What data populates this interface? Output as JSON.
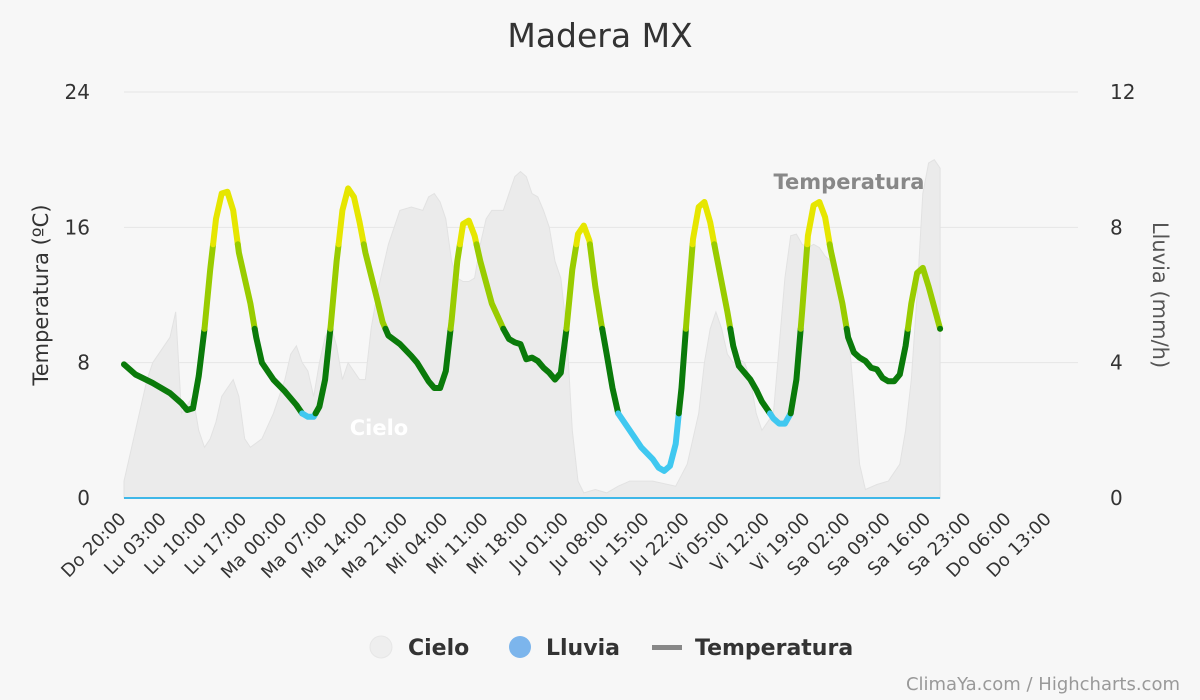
{
  "chart_data": {
    "type": "line",
    "title": "Madera MX",
    "ylabel": "Temperatura (ºC)",
    "y2label": "Lluvia (mm/h)",
    "ylim": [
      0,
      24
    ],
    "y2lim": [
      0,
      12
    ],
    "yticks": [
      0,
      8,
      16,
      24
    ],
    "y2ticks": [
      0,
      4,
      8,
      12
    ],
    "x_range": [
      0,
      166
    ],
    "x_unit": "hours since Do 20:00",
    "xtick_labels": [
      "Do 20:00",
      "Lu 03:00",
      "Lu 10:00",
      "Lu 17:00",
      "Ma 00:00",
      "Ma 07:00",
      "Ma 14:00",
      "Ma 21:00",
      "Mi 04:00",
      "Mi 11:00",
      "Mi 18:00",
      "Ju 01:00",
      "Ju 08:00",
      "Ju 15:00",
      "Ju 22:00",
      "Vi 05:00",
      "Vi 12:00",
      "Vi 19:00",
      "Sa 02:00",
      "Sa 09:00",
      "Sa 16:00",
      "Sa 23:00",
      "Do 06:00",
      "Do 13:00"
    ],
    "series": [
      {
        "name": "Temperatura",
        "points": [
          [
            0,
            7.9
          ],
          [
            2,
            7.3
          ],
          [
            5,
            6.8
          ],
          [
            8,
            6.2
          ],
          [
            10,
            5.6
          ],
          [
            11,
            5.2
          ],
          [
            12,
            5.3
          ],
          [
            13,
            7.2
          ],
          [
            14,
            10.0
          ],
          [
            15,
            13.5
          ],
          [
            16,
            16.5
          ],
          [
            17,
            18
          ],
          [
            18,
            18.1
          ],
          [
            19,
            17.0
          ],
          [
            20,
            14.5
          ],
          [
            22,
            11.5
          ],
          [
            23,
            9.5
          ],
          [
            24,
            8.0
          ],
          [
            26,
            7.0
          ],
          [
            28,
            6.3
          ],
          [
            30,
            5.5
          ],
          [
            31,
            5.0
          ],
          [
            32,
            4.8
          ],
          [
            33,
            4.8
          ],
          [
            34,
            5.4
          ],
          [
            35,
            7.0
          ],
          [
            36,
            10.3
          ],
          [
            37,
            14.0
          ],
          [
            38,
            17.0
          ],
          [
            39,
            18.3
          ],
          [
            40,
            17.8
          ],
          [
            41,
            16.3
          ],
          [
            42,
            14.5
          ],
          [
            44,
            11.8
          ],
          [
            45,
            10.4
          ],
          [
            46,
            9.6
          ],
          [
            48,
            9.1
          ],
          [
            50,
            8.4
          ],
          [
            51,
            8.0
          ],
          [
            53,
            6.9
          ],
          [
            54,
            6.5
          ],
          [
            55,
            6.5
          ],
          [
            56,
            7.5
          ],
          [
            57,
            10.5
          ],
          [
            58,
            14.0
          ],
          [
            59,
            16.2
          ],
          [
            60,
            16.4
          ],
          [
            61,
            15.5
          ],
          [
            62,
            14.0
          ],
          [
            64,
            11.5
          ],
          [
            66,
            10.0
          ],
          [
            67,
            9.4
          ],
          [
            68,
            9.2
          ],
          [
            69,
            9.1
          ],
          [
            70,
            8.2
          ],
          [
            71,
            8.3
          ],
          [
            72,
            8.1
          ],
          [
            73,
            7.7
          ],
          [
            74,
            7.4
          ],
          [
            75,
            7.0
          ],
          [
            76,
            7.4
          ],
          [
            77,
            10.0
          ],
          [
            78,
            13.5
          ],
          [
            79,
            15.6
          ],
          [
            80,
            16.1
          ],
          [
            81,
            15.2
          ],
          [
            82,
            12.5
          ],
          [
            83,
            10.4
          ],
          [
            84,
            8.5
          ],
          [
            85,
            6.5
          ],
          [
            86,
            5.0
          ],
          [
            87,
            4.5
          ],
          [
            88,
            4.0
          ],
          [
            90,
            3.0
          ],
          [
            92,
            2.3
          ],
          [
            93,
            1.8
          ],
          [
            94,
            1.6
          ],
          [
            95,
            1.9
          ],
          [
            96,
            3.2
          ],
          [
            97,
            6.5
          ],
          [
            98,
            11.0
          ],
          [
            99,
            15.3
          ],
          [
            100,
            17.2
          ],
          [
            101,
            17.5
          ],
          [
            102,
            16.3
          ],
          [
            103,
            14.5
          ],
          [
            105,
            11.0
          ],
          [
            106,
            9.0
          ],
          [
            107,
            7.8
          ],
          [
            109,
            7.0
          ],
          [
            110,
            6.4
          ],
          [
            111,
            5.7
          ],
          [
            112,
            5.2
          ],
          [
            113,
            4.7
          ],
          [
            114,
            4.4
          ],
          [
            115,
            4.4
          ],
          [
            116,
            5.0
          ],
          [
            117,
            7.0
          ],
          [
            118,
            11.0
          ],
          [
            119,
            15.5
          ],
          [
            120,
            17.3
          ],
          [
            121,
            17.5
          ],
          [
            122,
            16.6
          ],
          [
            123,
            14.6
          ],
          [
            125,
            11.5
          ],
          [
            126,
            9.5
          ],
          [
            127,
            8.6
          ],
          [
            128,
            8.3
          ],
          [
            129,
            8.1
          ],
          [
            130,
            7.7
          ],
          [
            131,
            7.6
          ],
          [
            132,
            7.1
          ],
          [
            133,
            6.9
          ],
          [
            134,
            6.9
          ],
          [
            135,
            7.3
          ],
          [
            136,
            9.0
          ],
          [
            137,
            11.5
          ],
          [
            138,
            13.3
          ],
          [
            139,
            13.6
          ],
          [
            140,
            12.5
          ],
          [
            142,
            10.0
          ]
        ]
      },
      {
        "name": "Cielo",
        "points": [
          [
            0,
            1
          ],
          [
            2,
            4
          ],
          [
            4,
            7
          ],
          [
            5,
            8
          ],
          [
            6,
            8.5
          ],
          [
            8,
            9.5
          ],
          [
            9,
            11
          ],
          [
            10,
            5
          ],
          [
            11,
            5.5
          ],
          [
            12,
            6
          ],
          [
            13,
            4
          ],
          [
            14,
            3
          ],
          [
            15,
            3.5
          ],
          [
            16,
            4.5
          ],
          [
            17,
            6
          ],
          [
            18,
            6.5
          ],
          [
            19,
            7
          ],
          [
            20,
            6
          ],
          [
            21,
            3.5
          ],
          [
            22,
            3
          ],
          [
            24,
            3.5
          ],
          [
            26,
            5
          ],
          [
            28,
            7
          ],
          [
            29,
            8.5
          ],
          [
            30,
            9
          ],
          [
            31,
            8
          ],
          [
            32,
            7.5
          ],
          [
            33,
            6
          ],
          [
            34,
            8
          ],
          [
            35,
            9.5
          ],
          [
            36,
            10.2
          ],
          [
            37,
            9
          ],
          [
            38,
            7
          ],
          [
            39,
            8
          ],
          [
            41,
            7
          ],
          [
            42,
            7
          ],
          [
            43,
            10
          ],
          [
            44,
            12
          ],
          [
            45,
            13.5
          ],
          [
            46,
            15
          ],
          [
            48,
            17
          ],
          [
            50,
            17.2
          ],
          [
            52,
            17
          ],
          [
            53,
            17.8
          ],
          [
            54,
            18
          ],
          [
            55,
            17.5
          ],
          [
            56,
            16.5
          ],
          [
            57,
            14
          ],
          [
            58,
            13
          ],
          [
            59,
            12.8
          ],
          [
            60,
            12.8
          ],
          [
            61,
            13
          ],
          [
            62,
            15
          ],
          [
            63,
            16.5
          ],
          [
            64,
            17
          ],
          [
            66,
            17
          ],
          [
            67,
            18
          ],
          [
            68,
            19
          ],
          [
            69,
            19.3
          ],
          [
            70,
            19
          ],
          [
            71,
            18
          ],
          [
            72,
            17.8
          ],
          [
            73,
            17
          ],
          [
            74,
            16
          ],
          [
            75,
            14
          ],
          [
            76,
            13
          ],
          [
            77,
            10
          ],
          [
            78,
            4
          ],
          [
            79,
            1
          ],
          [
            80,
            0.3
          ],
          [
            82,
            0.5
          ],
          [
            84,
            0.3
          ],
          [
            86,
            0.7
          ],
          [
            88,
            1
          ],
          [
            92,
            1
          ],
          [
            96,
            0.7
          ],
          [
            98,
            2
          ],
          [
            100,
            5
          ],
          [
            101,
            8
          ],
          [
            102,
            10
          ],
          [
            103,
            11
          ],
          [
            104,
            10
          ],
          [
            105,
            8.5
          ],
          [
            106,
            8
          ],
          [
            107,
            8.2
          ],
          [
            108,
            8
          ],
          [
            109,
            7
          ],
          [
            110,
            5
          ],
          [
            111,
            4
          ],
          [
            112,
            4.5
          ],
          [
            113,
            5
          ],
          [
            114,
            9
          ],
          [
            115,
            13
          ],
          [
            116,
            15.5
          ],
          [
            117,
            15.6
          ],
          [
            118,
            15
          ],
          [
            119,
            14.8
          ],
          [
            120,
            15
          ],
          [
            121,
            14.8
          ],
          [
            122,
            14.3
          ],
          [
            123,
            14
          ],
          [
            124,
            13
          ],
          [
            125,
            11.5
          ],
          [
            126,
            10
          ],
          [
            127,
            6
          ],
          [
            128,
            2
          ],
          [
            129,
            0.5
          ],
          [
            131,
            0.8
          ],
          [
            133,
            1
          ],
          [
            135,
            2
          ],
          [
            136,
            4
          ],
          [
            137,
            7
          ],
          [
            138,
            12
          ],
          [
            139,
            18
          ],
          [
            140,
            19.8
          ],
          [
            141,
            20
          ],
          [
            142,
            19.5
          ]
        ]
      },
      {
        "name": "Lluvia",
        "points": [
          [
            0,
            0
          ],
          [
            142,
            0
          ]
        ]
      }
    ],
    "temperature_color_bands": [
      {
        "max": 5,
        "color": "#40c8f0"
      },
      {
        "max": 10,
        "color": "#0a7a0a"
      },
      {
        "max": 15,
        "color": "#99cc00"
      },
      {
        "max": 25,
        "color": "#e6e600"
      }
    ],
    "annotations": [
      "Temperatura",
      "Cielo"
    ],
    "legend": [
      {
        "label": "Cielo",
        "color": "#eeeeee",
        "symbol": "circle"
      },
      {
        "label": "Lluvia",
        "color": "#7cb5ec",
        "symbol": "circle"
      },
      {
        "label": "Temperatura",
        "color": "#888888",
        "symbol": "line"
      }
    ],
    "legend_position": "bottom-center",
    "grid": true,
    "credits": "ClimaYa.com / Highcharts.com"
  }
}
